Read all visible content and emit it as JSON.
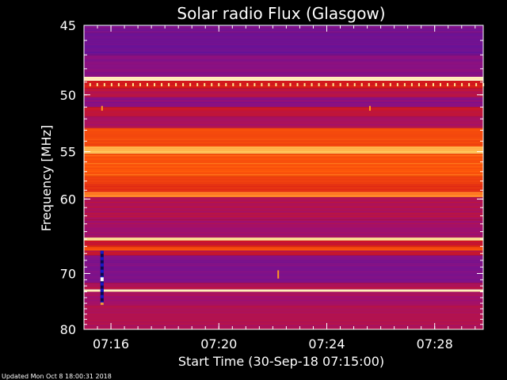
{
  "chart_data": {
    "type": "heatmap",
    "title": "Solar radio Flux (Glasgow)",
    "xlabel": "Start Time (30-Sep-18 07:15:00)",
    "ylabel": "Frequency [MHz]",
    "updated": "Updated Mon Oct  8 18:00:31 2018",
    "x_ticks": [
      "07:16",
      "07:20",
      "07:24",
      "07:28"
    ],
    "x_tick_minutes": [
      1,
      5,
      9,
      13
    ],
    "x_range_minutes": [
      0,
      14.8
    ],
    "y_ticks": [
      "45",
      "50",
      "55",
      "60",
      "70",
      "80"
    ],
    "y_tick_values": [
      45,
      50,
      55,
      60,
      70,
      80
    ],
    "ylim": [
      45,
      80
    ],
    "y_axis": "inverted-log",
    "colormap": [
      "#2a0070",
      "#5a14a0",
      "#9a1078",
      "#d41818",
      "#ff5a0a",
      "#ffd060",
      "#fffff0"
    ],
    "bands": [
      {
        "mhz": [
          45.0,
          45.5
        ],
        "level": 0.25
      },
      {
        "mhz": [
          45.5,
          47.0
        ],
        "level": 0.22
      },
      {
        "mhz": [
          47.0,
          48.6
        ],
        "level": 0.28
      },
      {
        "mhz": [
          48.6,
          48.9
        ],
        "level": 0.95
      },
      {
        "mhz": [
          48.9,
          49.5
        ],
        "level": 0.5
      },
      {
        "mhz": [
          49.5,
          50.2
        ],
        "level": 0.42
      },
      {
        "mhz": [
          50.2,
          51.0
        ],
        "level": 0.3
      },
      {
        "mhz": [
          51.0,
          51.8
        ],
        "level": 0.45
      },
      {
        "mhz": [
          51.8,
          52.8
        ],
        "level": 0.38
      },
      {
        "mhz": [
          52.8,
          54.5
        ],
        "level": 0.62
      },
      {
        "mhz": [
          54.5,
          55.2
        ],
        "level": 0.8
      },
      {
        "mhz": [
          55.2,
          57.5
        ],
        "level": 0.66
      },
      {
        "mhz": [
          57.5,
          59.2
        ],
        "level": 0.58
      },
      {
        "mhz": [
          59.2,
          59.8
        ],
        "level": 0.72
      },
      {
        "mhz": [
          59.8,
          62.5
        ],
        "level": 0.4
      },
      {
        "mhz": [
          62.5,
          64.8
        ],
        "level": 0.36
      },
      {
        "mhz": [
          64.8,
          65.2
        ],
        "level": 0.88
      },
      {
        "mhz": [
          65.2,
          66.0
        ],
        "level": 0.48
      },
      {
        "mhz": [
          66.0,
          66.6
        ],
        "level": 0.62
      },
      {
        "mhz": [
          66.6,
          67.3
        ],
        "level": 0.44
      },
      {
        "mhz": [
          67.3,
          71.5
        ],
        "level": 0.26
      },
      {
        "mhz": [
          71.5,
          72.6
        ],
        "level": 0.4
      },
      {
        "mhz": [
          72.6,
          73.0
        ],
        "level": 0.92
      },
      {
        "mhz": [
          73.0,
          75.5
        ],
        "level": 0.36
      },
      {
        "mhz": [
          75.5,
          80.0
        ],
        "level": 0.4
      }
    ],
    "events": [
      {
        "kind": "gap-column",
        "minute": 0.67,
        "mhz": [
          66.6,
          75.3
        ]
      },
      {
        "kind": "spike",
        "minute": 0.67,
        "mhz": [
          50.9,
          51.3
        ]
      },
      {
        "kind": "spike",
        "minute": 10.6,
        "mhz": [
          50.9,
          51.3
        ]
      },
      {
        "kind": "spike",
        "minute": 7.2,
        "mhz": [
          69.5,
          70.8
        ]
      }
    ],
    "legend": "none"
  }
}
